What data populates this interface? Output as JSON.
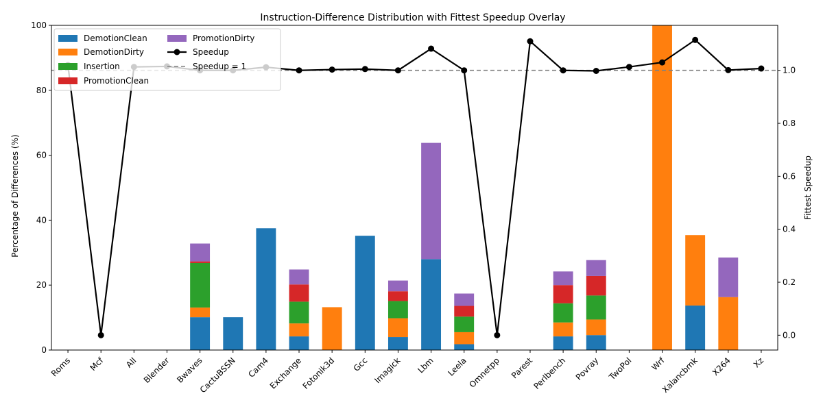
{
  "chart_data": {
    "type": "bar",
    "title": "Instruction-Difference Distribution with Fittest Speedup Overlay",
    "xlabel": "",
    "ylabel": "Percentage of Differences (%)",
    "y2label": "Fittest Speedup",
    "ylim": [
      0,
      100
    ],
    "y2lim": [
      -0.056,
      1.17
    ],
    "yticks": [
      0,
      20,
      40,
      60,
      80,
      100
    ],
    "y2ticks": [
      0.0,
      0.2,
      0.4,
      0.6,
      0.8,
      1.0
    ],
    "y2tick_labels": [
      "0.0",
      "0.2",
      "0.4",
      "0.6",
      "0.8",
      "1.0"
    ],
    "categories": [
      "Roms",
      "Mcf",
      "All",
      "Blender",
      "Bwaves",
      "CactuBSSN",
      "Cam4",
      "Exchange",
      "Fotonik3d",
      "Gcc",
      "Imagick",
      "Lbm",
      "Leela",
      "Omnetpp",
      "Parest",
      "Perlbench",
      "Povray",
      "TwoPol",
      "Wrf",
      "Xalancbmk",
      "X264",
      "Xz"
    ],
    "stacked": true,
    "series": [
      {
        "name": "DemotionClean",
        "color": "#1f77b4",
        "values": [
          0,
          0,
          0,
          0,
          10.1,
          10.1,
          37.5,
          4.2,
          0,
          35.2,
          4.0,
          28.0,
          1.8,
          0,
          0,
          4.2,
          4.6,
          0,
          0,
          13.7,
          0,
          0
        ]
      },
      {
        "name": "DemotionDirty",
        "color": "#ff7f0e",
        "values": [
          0,
          0,
          0,
          0,
          3.0,
          0,
          0,
          4.0,
          13.2,
          0,
          5.8,
          0,
          3.7,
          0,
          0,
          4.3,
          4.8,
          0,
          100,
          21.7,
          16.3,
          0
        ]
      },
      {
        "name": "Insertion",
        "color": "#2ca02c",
        "values": [
          0,
          0,
          0,
          0,
          13.7,
          0,
          0,
          6.7,
          0,
          0,
          5.3,
          0,
          4.8,
          0,
          0,
          5.9,
          7.4,
          0,
          0,
          0,
          0,
          0
        ]
      },
      {
        "name": "PromotionClean",
        "color": "#d62728",
        "values": [
          0,
          0,
          0,
          0,
          0.5,
          0,
          0,
          5.3,
          0,
          0,
          3.0,
          0,
          3.3,
          0,
          0,
          5.6,
          6.0,
          0,
          0,
          0,
          0,
          0
        ]
      },
      {
        "name": "PromotionDirty",
        "color": "#9467bd",
        "values": [
          0,
          0,
          0,
          0,
          5.5,
          0,
          0,
          4.6,
          0,
          0,
          3.3,
          35.8,
          3.8,
          0,
          0,
          4.2,
          4.9,
          0,
          0,
          0,
          12.2,
          0
        ]
      }
    ],
    "line": {
      "name": "Speedup",
      "color": "#000000",
      "values": [
        1.02,
        0.0,
        1.013,
        1.015,
        1.0,
        1.0,
        1.012,
        1.0,
        1.003,
        1.005,
        1.0,
        1.082,
        1.0,
        0.0,
        1.11,
        1.0,
        0.998,
        1.013,
        1.03,
        1.115,
        1.001,
        1.007
      ]
    },
    "reference_line": {
      "name": "Speedup = 1",
      "value": 1.0,
      "color": "#808080"
    },
    "legend": {
      "placement": "top-left",
      "columns": 2,
      "entries": [
        "DemotionClean",
        "DemotionDirty",
        "Insertion",
        "PromotionClean",
        "PromotionDirty",
        "Speedup",
        "Speedup = 1"
      ]
    },
    "grid": false
  }
}
